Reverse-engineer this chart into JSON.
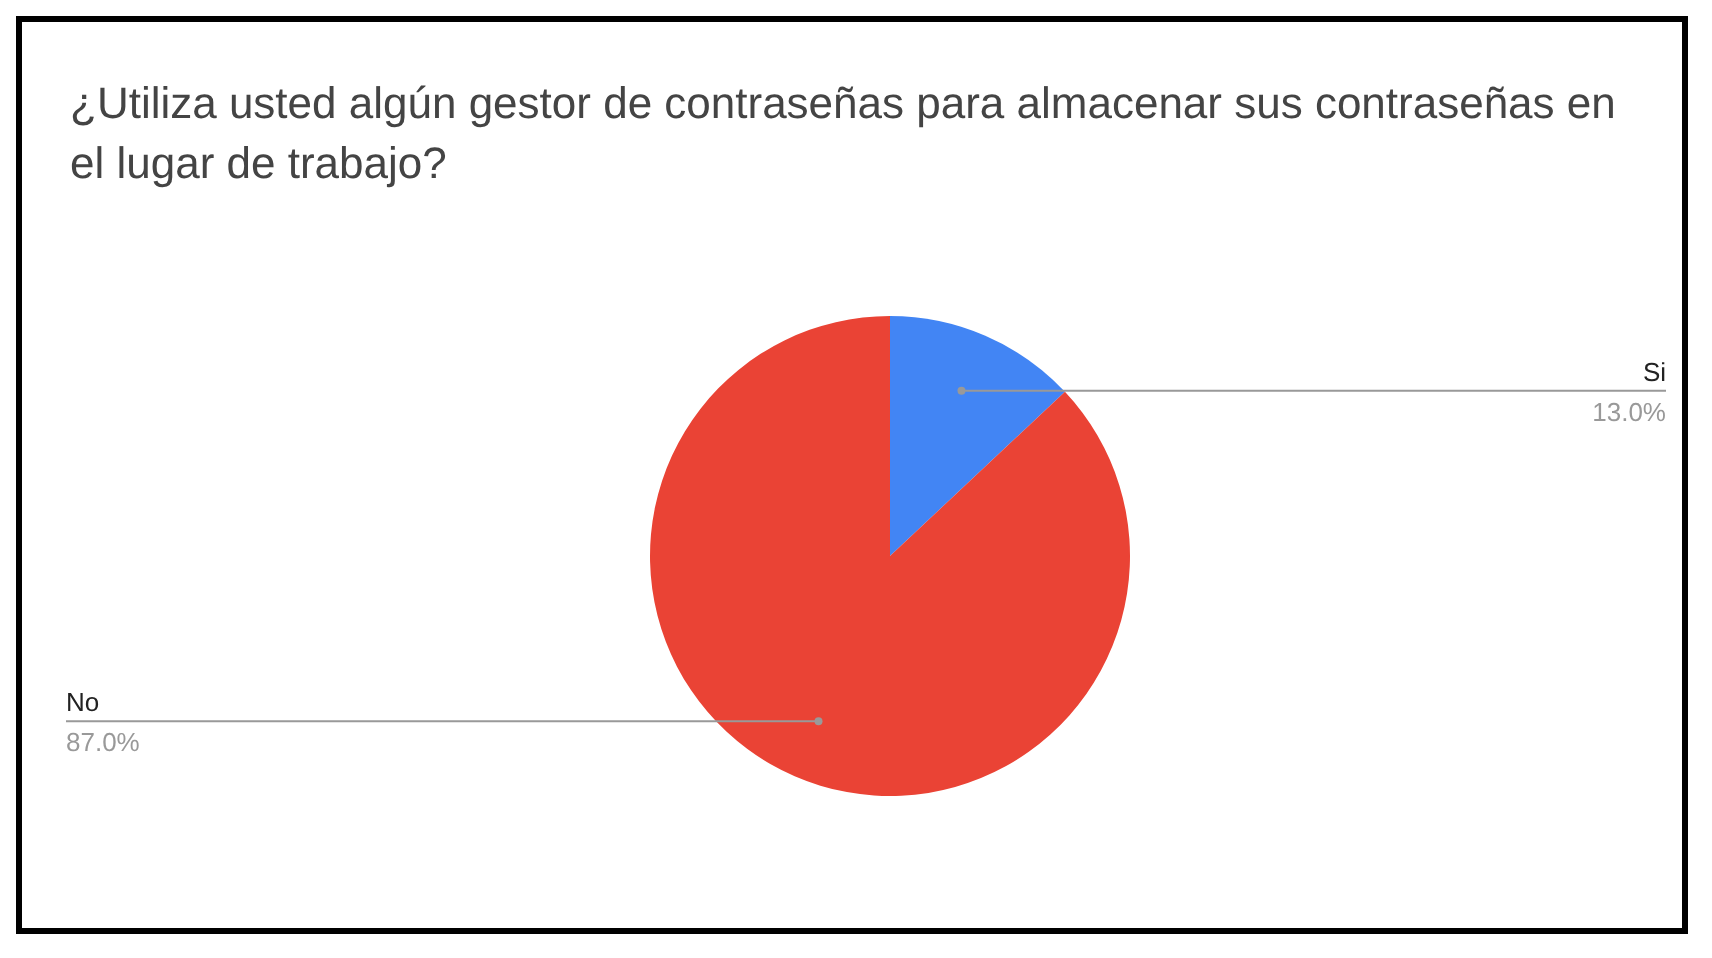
{
  "chart_data": {
    "type": "pie",
    "title": "¿Utiliza usted algún gestor de contraseñas para almacenar sus contraseñas en el lugar de trabajo?",
    "categories": [
      "Si",
      "No"
    ],
    "values": [
      13,
      87
    ],
    "colors": [
      "#4285f4",
      "#ea4335"
    ],
    "value_labels": [
      "13.0%",
      "87.0%"
    ],
    "legend": false
  }
}
